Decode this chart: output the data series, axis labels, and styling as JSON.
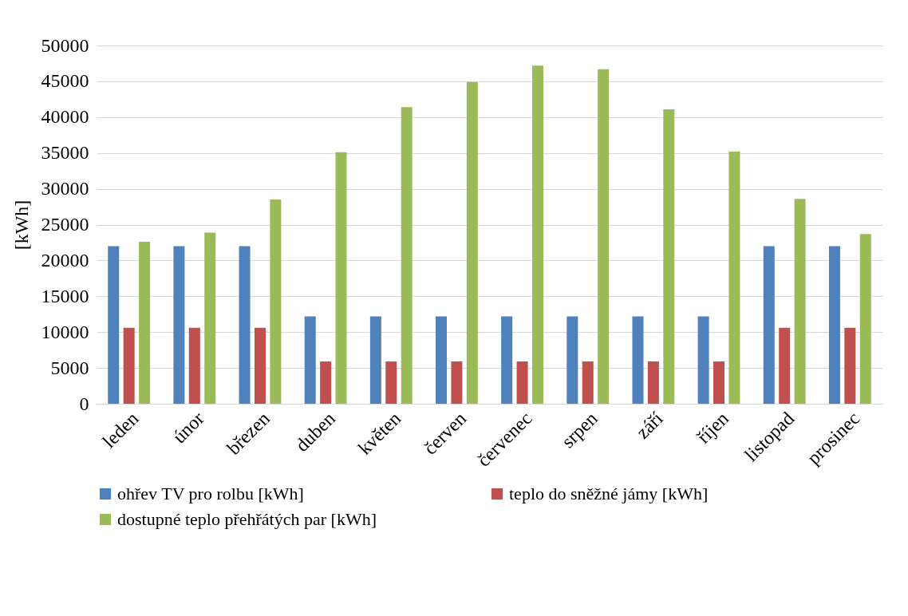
{
  "chart_data": {
    "type": "bar",
    "ylabel": "[kWh]",
    "categories": [
      "leden",
      "únor",
      "březen",
      "duben",
      "květen",
      "červen",
      "červenec",
      "srpen",
      "září",
      "říjen",
      "listopad",
      "prosinec"
    ],
    "series": [
      {
        "name": "ohřev TV pro rolbu [kWh]",
        "color": "#4f81bd",
        "values": [
          22000,
          22000,
          22000,
          12200,
          12200,
          12200,
          12200,
          12200,
          12200,
          12200,
          22000,
          22000
        ]
      },
      {
        "name": "teplo do sněžné jámy [kWh]",
        "color": "#c0504d",
        "values": [
          10600,
          10600,
          10600,
          5900,
          5900,
          5900,
          5900,
          5900,
          5900,
          5900,
          10600,
          10600
        ]
      },
      {
        "name": "dostupné teplo přehřátých par [kWh]",
        "color": "#9bbb59",
        "values": [
          22600,
          23900,
          28500,
          35100,
          41400,
          44900,
          47200,
          46700,
          41100,
          35200,
          28600,
          23700
        ]
      }
    ],
    "ylim": [
      0,
      50000
    ],
    "yticks": [
      0,
      5000,
      10000,
      15000,
      20000,
      25000,
      30000,
      35000,
      40000,
      45000,
      50000
    ],
    "grid": "y",
    "legend": "bottom"
  }
}
